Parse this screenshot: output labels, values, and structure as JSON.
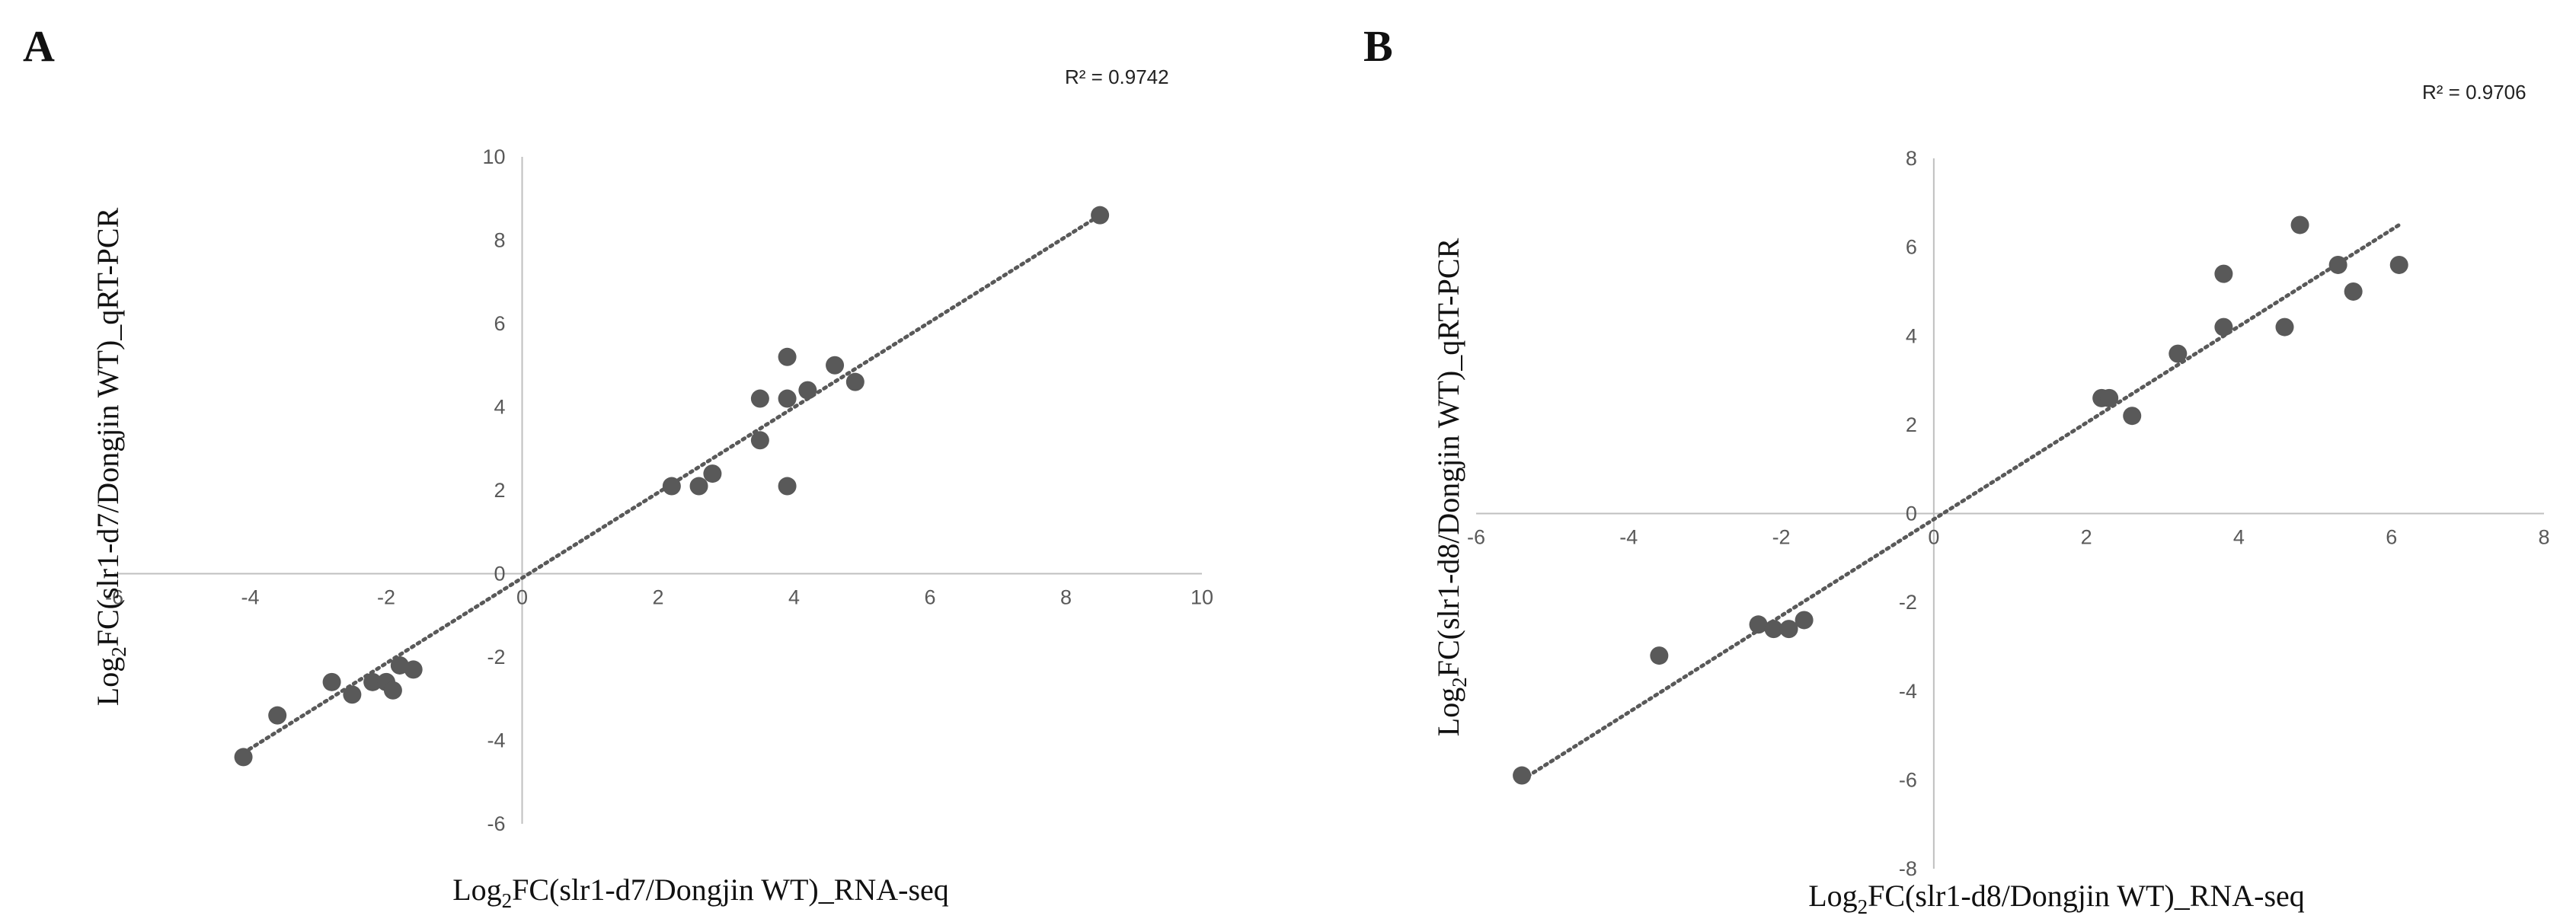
{
  "chart_data": [
    {
      "type": "scatter",
      "panel": "A",
      "r_squared_label": "R² = 0.9742",
      "xlabel": {
        "prefix": "Log",
        "subscript": "2",
        "rest": "FC(slr1-d7/Dongjin WT)_RNA-seq"
      },
      "ylabel": {
        "prefix": "Log",
        "subscript": "2",
        "rest": "FC(slr1-d7/Dongjin WT)_qRT-PCR"
      },
      "xlim": [
        -6,
        10
      ],
      "ylim": [
        -6,
        10
      ],
      "xticks": [
        -6,
        -4,
        -2,
        0,
        2,
        4,
        6,
        8,
        10
      ],
      "yticks": [
        -6,
        -4,
        -2,
        0,
        2,
        4,
        6,
        8,
        10
      ],
      "trendline": {
        "x": [
          -4.1,
          8.6
        ],
        "y": [
          -4.3,
          8.7
        ]
      },
      "colors": {
        "point": "#595959",
        "axis": "#bfbfbf",
        "trend": "#595959"
      },
      "points": [
        {
          "x": -4.1,
          "y": -4.4
        },
        {
          "x": -3.6,
          "y": -3.4
        },
        {
          "x": -2.8,
          "y": -2.6
        },
        {
          "x": -2.5,
          "y": -2.9
        },
        {
          "x": -2.2,
          "y": -2.6
        },
        {
          "x": -2.0,
          "y": -2.6
        },
        {
          "x": -1.9,
          "y": -2.8
        },
        {
          "x": -1.8,
          "y": -2.2
        },
        {
          "x": -1.6,
          "y": -2.3
        },
        {
          "x": 2.2,
          "y": 2.1
        },
        {
          "x": 2.6,
          "y": 2.1
        },
        {
          "x": 2.8,
          "y": 2.4
        },
        {
          "x": 3.5,
          "y": 3.2
        },
        {
          "x": 3.5,
          "y": 4.2
        },
        {
          "x": 3.9,
          "y": 4.2
        },
        {
          "x": 3.9,
          "y": 2.1
        },
        {
          "x": 3.9,
          "y": 5.2
        },
        {
          "x": 4.2,
          "y": 4.4
        },
        {
          "x": 4.6,
          "y": 5.0
        },
        {
          "x": 4.9,
          "y": 4.6
        },
        {
          "x": 8.5,
          "y": 8.6
        }
      ]
    },
    {
      "type": "scatter",
      "panel": "B",
      "r_squared_label": "R² = 0.9706",
      "xlabel": {
        "prefix": "Log",
        "subscript": "2",
        "rest": "FC(slr1-d8/Dongjin WT)_RNA-seq"
      },
      "ylabel": {
        "prefix": "Log",
        "subscript": "2",
        "rest": "FC(slr1-d8/Dongjin WT)_qRT-PCR"
      },
      "xlim": [
        -6,
        8
      ],
      "ylim": [
        -8,
        8
      ],
      "xticks": [
        -6,
        -4,
        -2,
        0,
        2,
        4,
        6,
        8
      ],
      "yticks": [
        -8,
        -6,
        -4,
        -2,
        0,
        2,
        4,
        6,
        8
      ],
      "trendline": {
        "x": [
          -5.4,
          6.1
        ],
        "y": [
          -6.0,
          6.5
        ]
      },
      "colors": {
        "point": "#595959",
        "axis": "#bfbfbf",
        "trend": "#595959"
      },
      "points": [
        {
          "x": -5.4,
          "y": -5.9
        },
        {
          "x": -3.6,
          "y": -3.2
        },
        {
          "x": -2.3,
          "y": -2.5
        },
        {
          "x": -2.1,
          "y": -2.6
        },
        {
          "x": -1.9,
          "y": -2.6
        },
        {
          "x": -1.7,
          "y": -2.4
        },
        {
          "x": 2.2,
          "y": 2.6
        },
        {
          "x": 2.3,
          "y": 2.6
        },
        {
          "x": 2.6,
          "y": 2.2
        },
        {
          "x": 3.2,
          "y": 3.6
        },
        {
          "x": 3.8,
          "y": 5.4
        },
        {
          "x": 3.8,
          "y": 4.2
        },
        {
          "x": 4.6,
          "y": 4.2
        },
        {
          "x": 4.8,
          "y": 6.5
        },
        {
          "x": 5.3,
          "y": 5.6
        },
        {
          "x": 5.5,
          "y": 5.0
        },
        {
          "x": 6.1,
          "y": 5.6
        }
      ]
    }
  ]
}
